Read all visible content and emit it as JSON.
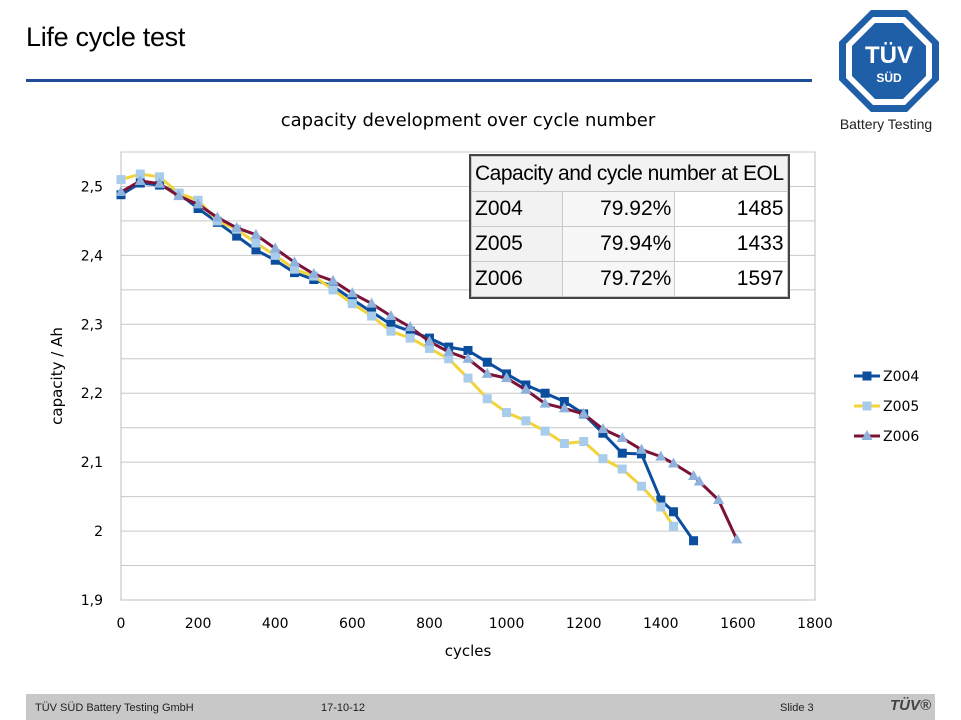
{
  "slide": {
    "title": "Life cycle test",
    "logo_main": "TÜV",
    "logo_sub": "SÜD",
    "logo_caption": "Battery Testing"
  },
  "footer": {
    "company": "TÜV SÜD Battery Testing GmbH",
    "date": "17-10-12",
    "slide_number": "Slide 3",
    "mini_logo": "TÜV®"
  },
  "colors": {
    "accent_rule": "#1f4e99",
    "Z004": "#0b4e9e",
    "Z005": "#f2d43a",
    "Z006": "#7a1337",
    "marker_Z005": "#a8ccec",
    "marker_Z006": "#8fb2dd"
  },
  "eol_table": {
    "header": "Capacity and cycle number at EOL",
    "rows": [
      {
        "name": "Z004",
        "percent": "79.92%",
        "cycles": "1485"
      },
      {
        "name": "Z005",
        "percent": "79.94%",
        "cycles": "1433"
      },
      {
        "name": "Z006",
        "percent": "79.72%",
        "cycles": "1597"
      }
    ]
  },
  "chart_data": {
    "type": "line",
    "title": "capacity development over cycle number",
    "xlabel": "cycles",
    "ylabel": "capacity / Ah",
    "xlim": [
      0,
      1800
    ],
    "ylim": [
      1.9,
      2.55
    ],
    "xticks": [
      "0",
      "200",
      "400",
      "600",
      "800",
      "1000",
      "1200",
      "1400",
      "1600",
      "1800"
    ],
    "yticks": [
      "1,9",
      "2",
      "2,1",
      "2,2",
      "2,3",
      "2,4",
      "2,5"
    ],
    "grid": true,
    "legend_position": "right",
    "series": [
      {
        "name": "Z004",
        "marker": "square",
        "x": [
          0,
          50,
          100,
          150,
          200,
          250,
          300,
          350,
          400,
          450,
          500,
          550,
          600,
          650,
          700,
          750,
          800,
          850,
          900,
          950,
          1000,
          1050,
          1100,
          1150,
          1200,
          1250,
          1300,
          1350,
          1400,
          1433,
          1485
        ],
        "y": [
          2.488,
          2.505,
          2.502,
          2.49,
          2.468,
          2.448,
          2.428,
          2.408,
          2.393,
          2.375,
          2.365,
          2.355,
          2.336,
          2.318,
          2.3,
          2.29,
          2.28,
          2.267,
          2.262,
          2.245,
          2.228,
          2.212,
          2.2,
          2.188,
          2.17,
          2.142,
          2.113,
          2.112,
          2.045,
          2.028,
          1.986
        ]
      },
      {
        "name": "Z005",
        "marker": "square",
        "x": [
          0,
          50,
          100,
          150,
          200,
          250,
          300,
          350,
          400,
          450,
          500,
          550,
          600,
          650,
          700,
          750,
          800,
          850,
          900,
          950,
          1000,
          1050,
          1100,
          1150,
          1200,
          1250,
          1300,
          1350,
          1400,
          1433
        ],
        "y": [
          2.51,
          2.518,
          2.514,
          2.49,
          2.48,
          2.45,
          2.438,
          2.418,
          2.4,
          2.38,
          2.37,
          2.35,
          2.33,
          2.312,
          2.29,
          2.28,
          2.265,
          2.25,
          2.222,
          2.192,
          2.172,
          2.16,
          2.145,
          2.127,
          2.13,
          2.105,
          2.09,
          2.065,
          2.035,
          2.007
        ]
      },
      {
        "name": "Z006",
        "marker": "triangle",
        "x": [
          0,
          50,
          100,
          150,
          200,
          250,
          300,
          350,
          400,
          450,
          500,
          550,
          600,
          650,
          700,
          750,
          800,
          850,
          900,
          950,
          1000,
          1050,
          1100,
          1150,
          1200,
          1250,
          1300,
          1350,
          1400,
          1433,
          1485,
          1500,
          1550,
          1597
        ],
        "y": [
          2.492,
          2.508,
          2.504,
          2.486,
          2.474,
          2.455,
          2.44,
          2.43,
          2.41,
          2.39,
          2.373,
          2.363,
          2.345,
          2.33,
          2.312,
          2.296,
          2.275,
          2.26,
          2.25,
          2.228,
          2.222,
          2.205,
          2.185,
          2.178,
          2.17,
          2.148,
          2.135,
          2.118,
          2.108,
          2.098,
          2.08,
          2.072,
          2.045,
          1.988
        ]
      }
    ]
  }
}
